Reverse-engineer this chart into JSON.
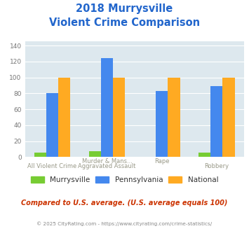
{
  "title_line1": "2018 Murrysville",
  "title_line2": "Violent Crime Comparison",
  "cat_labels_top": [
    "",
    "Murder & Mans...",
    "Rape",
    ""
  ],
  "cat_labels_bottom": [
    "All Violent Crime",
    "Aggravated Assault",
    "",
    "Robbery"
  ],
  "series": {
    "Murrysville": [
      6,
      7,
      0,
      6
    ],
    "Pennsylvania": [
      80,
      124,
      83,
      89
    ],
    "National": [
      100,
      100,
      100,
      100
    ]
  },
  "colors": {
    "Murrysville": "#77cc33",
    "Pennsylvania": "#4488ee",
    "National": "#ffaa22"
  },
  "ylim": [
    0,
    145
  ],
  "yticks": [
    0,
    20,
    40,
    60,
    80,
    100,
    120,
    140
  ],
  "plot_bg": "#dde8ee",
  "title_color": "#2266cc",
  "subtitle_note": "Compared to U.S. average. (U.S. average equals 100)",
  "footer": "© 2025 CityRating.com - https://www.cityrating.com/crime-statistics/",
  "subtitle_color": "#cc3300",
  "footer_color": "#888888",
  "grid_color": "#ffffff",
  "bar_width": 0.22
}
